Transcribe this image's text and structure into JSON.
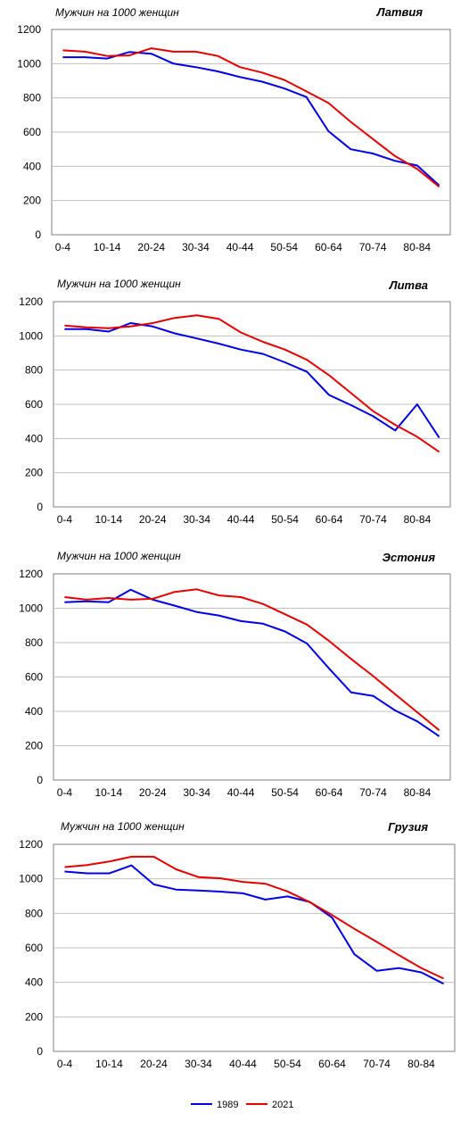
{
  "colors": {
    "1989": "#0000e6",
    "2021": "#e60000"
  },
  "legend": {
    "position": "bottom-center",
    "items": [
      "1989",
      "2021"
    ]
  },
  "chart_data": [
    {
      "type": "line",
      "title": "Латвия",
      "ylabel": "Мужчин на 1000 женщин",
      "ylim": [
        0,
        1200
      ],
      "yticks": [
        "0",
        "200",
        "400",
        "600",
        "800",
        "1000",
        "1200"
      ],
      "xtick_labels": [
        "0-4",
        "10-14",
        "20-24",
        "30-34",
        "40-44",
        "50-54",
        "60-64",
        "70-74",
        "80-84"
      ],
      "categories": [
        "0-4",
        "5-9",
        "10-14",
        "15-19",
        "20-24",
        "25-29",
        "30-34",
        "35-39",
        "40-44",
        "45-49",
        "50-54",
        "55-59",
        "60-64",
        "65-69",
        "70-74",
        "75-79",
        "80-84",
        "85+"
      ],
      "grid": true,
      "series": [
        {
          "name": "1989",
          "values": [
            1038,
            1038,
            1030,
            1068,
            1058,
            1000,
            980,
            955,
            922,
            895,
            855,
            805,
            605,
            500,
            475,
            432,
            405,
            288
          ]
        },
        {
          "name": "2021",
          "values": [
            1078,
            1070,
            1045,
            1048,
            1090,
            1070,
            1070,
            1045,
            980,
            948,
            905,
            838,
            770,
            660,
            560,
            460,
            385,
            280
          ]
        }
      ]
    },
    {
      "type": "line",
      "title": "Литва",
      "ylabel": "Мужчин на 1000 женщин",
      "ylim": [
        0,
        1200
      ],
      "yticks": [
        "0",
        "200",
        "400",
        "600",
        "800",
        "1000",
        "1200"
      ],
      "xtick_labels": [
        "0-4",
        "10-14",
        "20-24",
        "30-34",
        "40-44",
        "50-54",
        "60-64",
        "70-74",
        "80-84"
      ],
      "categories": [
        "0-4",
        "5-9",
        "10-14",
        "15-19",
        "20-24",
        "25-29",
        "30-34",
        "35-39",
        "40-44",
        "45-49",
        "50-54",
        "55-59",
        "60-64",
        "65-69",
        "70-74",
        "75-79",
        "80-84",
        "85+"
      ],
      "grid": true,
      "series": [
        {
          "name": "1989",
          "values": [
            1040,
            1040,
            1025,
            1075,
            1055,
            1015,
            985,
            955,
            920,
            895,
            845,
            790,
            655,
            595,
            530,
            447,
            600,
            405
          ]
        },
        {
          "name": "2021",
          "values": [
            1060,
            1050,
            1045,
            1055,
            1075,
            1105,
            1120,
            1100,
            1020,
            965,
            920,
            860,
            770,
            665,
            560,
            480,
            410,
            322
          ]
        }
      ]
    },
    {
      "type": "line",
      "title": "Эстония",
      "ylabel": "Мужчин на 1000 женщин",
      "ylim": [
        0,
        1200
      ],
      "yticks": [
        "0",
        "200",
        "400",
        "600",
        "800",
        "1000",
        "1200"
      ],
      "xtick_labels": [
        "0-4",
        "10-14",
        "20-24",
        "30-34",
        "40-44",
        "50-54",
        "60-64",
        "70-74",
        "80-84"
      ],
      "categories": [
        "0-4",
        "5-9",
        "10-14",
        "15-19",
        "20-24",
        "25-29",
        "30-34",
        "35-39",
        "40-44",
        "45-49",
        "50-54",
        "55-59",
        "60-64",
        "65-69",
        "70-74",
        "75-79",
        "80-84",
        "85+"
      ],
      "grid": true,
      "series": [
        {
          "name": "1989",
          "values": [
            1035,
            1040,
            1035,
            1108,
            1050,
            1015,
            978,
            958,
            925,
            910,
            865,
            795,
            650,
            510,
            490,
            405,
            342,
            255
          ]
        },
        {
          "name": "2021",
          "values": [
            1065,
            1050,
            1060,
            1050,
            1055,
            1095,
            1110,
            1075,
            1065,
            1025,
            965,
            905,
            810,
            705,
            605,
            500,
            395,
            290
          ]
        }
      ]
    },
    {
      "type": "line",
      "title": "Грузия",
      "ylabel": "Мужчин на 1000 женщин",
      "ylim": [
        0,
        1200
      ],
      "yticks": [
        "0",
        "200",
        "400",
        "600",
        "800",
        "1000",
        "1200"
      ],
      "xtick_labels": [
        "0-4",
        "10-14",
        "20-24",
        "30-34",
        "40-44",
        "50-54",
        "60-64",
        "70-74",
        "80-84"
      ],
      "categories": [
        "0-4",
        "5-9",
        "10-14",
        "15-19",
        "20-24",
        "25-29",
        "30-34",
        "35-39",
        "40-44",
        "45-49",
        "50-54",
        "55-59",
        "60-64",
        "65-69",
        "70-74",
        "75-79",
        "80-84",
        "85+"
      ],
      "grid": true,
      "series": [
        {
          "name": "1989",
          "values": [
            1042,
            1032,
            1032,
            1078,
            968,
            938,
            932,
            926,
            916,
            880,
            898,
            866,
            775,
            563,
            467,
            483,
            458,
            392
          ]
        },
        {
          "name": "2021",
          "values": [
            1068,
            1080,
            1100,
            1128,
            1128,
            1055,
            1010,
            1003,
            982,
            972,
            927,
            865,
            790,
            710,
            635,
            557,
            483,
            422
          ]
        }
      ]
    }
  ]
}
